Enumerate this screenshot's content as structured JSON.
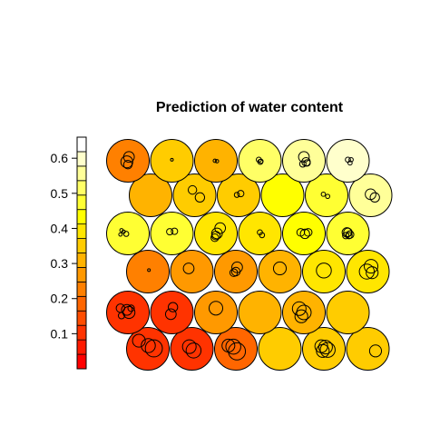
{
  "chart_data": {
    "type": "heatmap",
    "title": "Prediction of water content",
    "xlabel": "",
    "ylabel": "",
    "legend": {
      "placement": "left",
      "range": [
        0,
        0.66
      ],
      "ticks": [
        "0.1",
        "0.2",
        "0.3",
        "0.4",
        "0.5",
        "0.6"
      ],
      "tick_values": [
        0.1,
        0.2,
        0.3,
        0.4,
        0.5,
        0.6
      ],
      "palette": [
        "#ff0000",
        "#ff1a00",
        "#ff3300",
        "#ff4d00",
        "#ff6600",
        "#ff8000",
        "#ff9900",
        "#ffb300",
        "#ffcc00",
        "#ffe600",
        "#ffff00",
        "#ffff33",
        "#ffff66",
        "#ffff99",
        "#ffffcc",
        "#ffffff"
      ]
    },
    "rows": [
      {
        "cells": [
          {
            "value": 0.1,
            "samples": [
              [
                -0.42,
                -0.38,
                0.3
              ],
              [
                0.02,
                -0.15,
                0.33
              ],
              [
                0.28,
                -0.02,
                0.4
              ]
            ]
          },
          {
            "value": 0.12,
            "samples": [
              [
                -0.12,
                -0.1,
                0.32
              ],
              [
                0.08,
                0.08,
                0.35
              ]
            ]
          },
          {
            "value": 0.2,
            "samples": [
              [
                -0.35,
                -0.15,
                0.3
              ],
              [
                -0.12,
                -0.1,
                0.35
              ],
              [
                0.05,
                0.12,
                0.4
              ]
            ]
          },
          {
            "value": 0.33,
            "samples": []
          },
          {
            "value": 0.37,
            "samples": [
              [
                -0.12,
                -0.12,
                0.3
              ],
              [
                0.08,
                -0.08,
                0.32
              ],
              [
                0.18,
                0.05,
                0.35
              ],
              [
                -0.05,
                0.1,
                0.3
              ]
            ]
          },
          {
            "value": 0.36,
            "samples": [
              [
                0.36,
                0.1,
                0.28
              ]
            ]
          }
        ]
      },
      {
        "cells": [
          {
            "value": 0.1,
            "samples": [
              [
                -0.35,
                -0.2,
                0.2
              ],
              [
                -0.05,
                -0.12,
                0.25
              ],
              [
                0.05,
                0.0,
                0.28
              ],
              [
                -0.3,
                0.15,
                0.15
              ],
              [
                0.15,
                -0.2,
                0.15
              ]
            ]
          },
          {
            "value": 0.1,
            "samples": [
              [
                0.05,
                -0.25,
                0.22
              ],
              [
                -0.05,
                0.08,
                0.25
              ]
            ]
          },
          {
            "value": 0.27,
            "samples": [
              [
                0.0,
                -0.2,
                0.32
              ]
            ]
          },
          {
            "value": 0.31,
            "samples": []
          },
          {
            "value": 0.31,
            "samples": [
              [
                -0.22,
                -0.18,
                0.32
              ],
              [
                0.0,
                0.0,
                0.34
              ],
              [
                -0.12,
                0.18,
                0.3
              ]
            ]
          },
          {
            "value": 0.34,
            "samples": []
          }
        ]
      },
      {
        "cells": [
          {
            "value": 0.24,
            "samples": [
              [
                0.05,
                -0.07,
                0.05
              ]
            ]
          },
          {
            "value": 0.25,
            "samples": [
              [
                -0.15,
                -0.15,
                0.25
              ]
            ]
          },
          {
            "value": 0.25,
            "samples": [
              [
                0.06,
                -0.2,
                0.25
              ],
              [
                0.0,
                0.0,
                0.2
              ],
              [
                -0.1,
                0.05,
                0.18
              ]
            ]
          },
          {
            "value": 0.3,
            "samples": [
              [
                0.0,
                -0.15,
                0.3
              ]
            ]
          },
          {
            "value": 0.38,
            "samples": [
              [
                0.0,
                -0.05,
                0.35
              ]
            ]
          },
          {
            "value": 0.4,
            "samples": [
              [
                0.15,
                -0.25,
                0.32
              ],
              [
                -0.05,
                0.0,
                0.35
              ],
              [
                0.2,
                0.05,
                0.28
              ]
            ]
          }
        ]
      },
      {
        "cells": [
          {
            "value": 0.48,
            "samples": [
              [
                -0.3,
                -0.15,
                0.08
              ],
              [
                -0.2,
                -0.08,
                0.08
              ],
              [
                -0.08,
                0.02,
                0.12
              ],
              [
                -0.35,
                0.05,
                0.08
              ]
            ]
          },
          {
            "value": 0.48,
            "samples": [
              [
                -0.1,
                -0.08,
                0.15
              ],
              [
                0.12,
                -0.1,
                0.15
              ]
            ]
          },
          {
            "value": 0.4,
            "samples": [
              [
                0.2,
                -0.25,
                0.25
              ],
              [
                0.05,
                0.0,
                0.25
              ],
              [
                0.0,
                0.1,
                0.2
              ],
              [
                -0.05,
                0.2,
                0.18
              ]
            ]
          },
          {
            "value": 0.4,
            "samples": [
              [
                0.0,
                -0.05,
                0.12
              ],
              [
                0.1,
                0.08,
                0.12
              ]
            ]
          },
          {
            "value": 0.45,
            "samples": [
              [
                -0.15,
                -0.05,
                0.18
              ],
              [
                0.05,
                0.02,
                0.22
              ],
              [
                0.2,
                -0.05,
                0.18
              ]
            ]
          },
          {
            "value": 0.47,
            "samples": [
              [
                0.0,
                -0.05,
                0.2
              ],
              [
                0.1,
                0.05,
                0.18
              ],
              [
                -0.1,
                0.1,
                0.15
              ],
              [
                0.05,
                0.1,
                0.15
              ],
              [
                -0.05,
                -0.05,
                0.22
              ]
            ]
          }
        ]
      },
      {
        "cells": [
          {
            "value": 0.32,
            "samples": []
          },
          {
            "value": 0.34,
            "samples": [
              [
                -0.1,
                -0.25,
                0.2
              ],
              [
                0.25,
                0.1,
                0.22
              ]
            ]
          },
          {
            "value": 0.37,
            "samples": [
              [
                0.1,
                -0.08,
                0.15
              ],
              [
                -0.08,
                -0.02,
                0.12
              ]
            ]
          },
          {
            "value": 0.43,
            "samples": []
          },
          {
            "value": 0.48,
            "samples": [
              [
                -0.15,
                -0.05,
                0.1
              ],
              [
                0.05,
                0.05,
                0.1
              ]
            ]
          },
          {
            "value": 0.55,
            "samples": [
              [
                0.0,
                -0.05,
                0.25
              ],
              [
                0.2,
                0.1,
                0.22
              ]
            ]
          }
        ]
      },
      {
        "cells": [
          {
            "value": 0.23,
            "samples": [
              [
                0.05,
                -0.18,
                0.25
              ],
              [
                -0.05,
                0.05,
                0.28
              ],
              [
                0.0,
                0.18,
                0.2
              ]
            ]
          },
          {
            "value": 0.33,
            "samples": [
              [
                0.0,
                -0.05,
                0.05
              ]
            ]
          },
          {
            "value": 0.31,
            "samples": [
              [
                -0.05,
                0.0,
                0.08
              ],
              [
                0.05,
                0.02,
                0.08
              ]
            ]
          },
          {
            "value": 0.51,
            "samples": [
              [
                -0.05,
                -0.05,
                0.12
              ],
              [
                0.02,
                0.05,
                0.12
              ],
              [
                0.05,
                0.02,
                0.1
              ]
            ]
          },
          {
            "value": 0.56,
            "samples": [
              [
                0.0,
                -0.18,
                0.25
              ],
              [
                0.1,
                0.05,
                0.2
              ],
              [
                -0.05,
                0.15,
                0.15
              ],
              [
                0.15,
                0.1,
                0.15
              ]
            ]
          },
          {
            "value": 0.6,
            "samples": [
              [
                0.0,
                -0.05,
                0.12
              ],
              [
                0.15,
                -0.05,
                0.1
              ],
              [
                0.1,
                0.1,
                0.1
              ]
            ]
          }
        ]
      }
    ]
  }
}
